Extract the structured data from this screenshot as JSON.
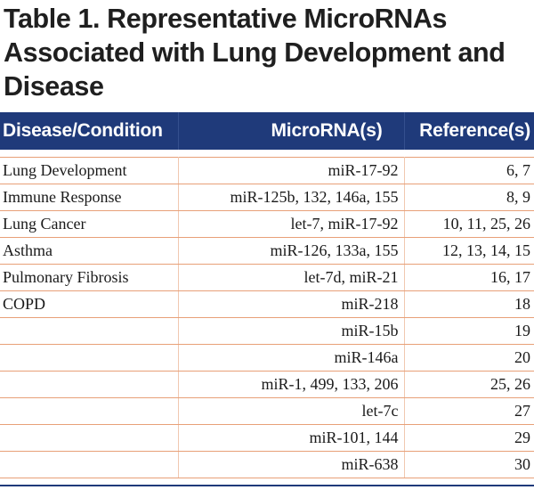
{
  "title": "Table 1. Representative MicroRNAs Associated with Lung Development and Disease",
  "columns": [
    "Disease/Condition",
    "MicroRNA(s)",
    "Reference(s)"
  ],
  "rows": [
    [
      "Lung Development",
      "miR-17-92",
      "6, 7"
    ],
    [
      "Immune Response",
      "miR-125b, 132, 146a, 155",
      "8, 9"
    ],
    [
      "Lung Cancer",
      "let-7, miR-17-92",
      "10, 11, 25, 26"
    ],
    [
      "Asthma",
      "miR-126, 133a, 155",
      "12, 13, 14, 15"
    ],
    [
      "Pulmonary Fibrosis",
      "let-7d, miR-21",
      "16, 17"
    ],
    [
      "COPD",
      "miR-218",
      "18"
    ],
    [
      "",
      "miR-15b",
      "19"
    ],
    [
      "",
      "miR-146a",
      "20"
    ],
    [
      "",
      "miR-1, 499, 133, 206",
      "25, 26"
    ],
    [
      "",
      "let-7c",
      "27"
    ],
    [
      "",
      "miR-101, 144",
      "29"
    ],
    [
      "",
      "miR-638",
      "30"
    ]
  ],
  "colors": {
    "header_bg": "#1f3a7a",
    "row_rule": "#e8a078"
  }
}
